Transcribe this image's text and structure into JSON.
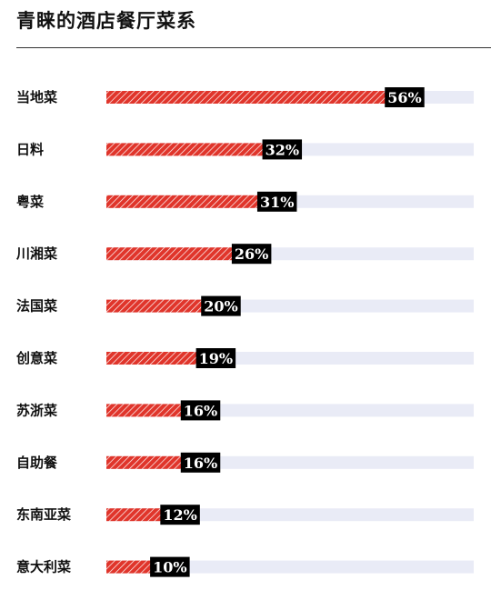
{
  "title": "青睐的酒店餐厅菜系",
  "colors": {
    "bar": "#e0352b",
    "hatch": "#ffffff",
    "track": "#e9ebf6",
    "label_bg": "#000000",
    "label_text": "#ffffff"
  },
  "chart_data": {
    "type": "bar",
    "orientation": "horizontal",
    "title": "青睐的酒店餐厅菜系",
    "categories": [
      "当地菜",
      "日料",
      "粤菜",
      "川湘菜",
      "法国菜",
      "创意菜",
      "苏浙菜",
      "自助餐",
      "东南亚菜",
      "意大利菜"
    ],
    "values": [
      56,
      32,
      31,
      26,
      20,
      19,
      16,
      16,
      12,
      10
    ],
    "value_labels": [
      "56%",
      "32%",
      "31%",
      "26%",
      "20%",
      "19%",
      "16%",
      "16%",
      "12%",
      "10%"
    ],
    "unit": "%",
    "xlim": [
      0,
      72
    ],
    "grid": false,
    "legend": "none"
  }
}
